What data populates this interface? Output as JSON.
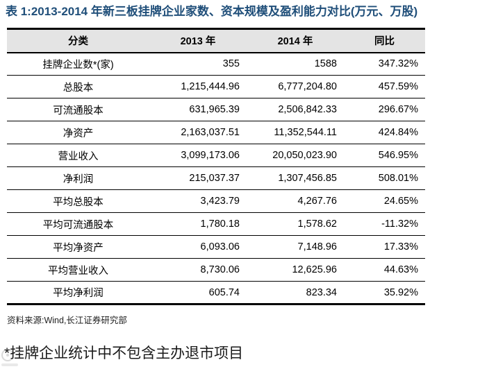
{
  "page": {
    "title": "表 1:2013-2014 年新三板挂牌企业家数、资本规模及盈利能力对比(万元、万股)",
    "source": "资料来源:Wind,长江证券研究部",
    "footnote": "*挂牌企业统计中不包含主办退市项目"
  },
  "table": {
    "headers": {
      "category": "分类",
      "y2013": "2013 年",
      "y2014": "2014 年",
      "yoy": "同比"
    },
    "rows": [
      {
        "label": "挂牌企业数*(家)",
        "y2013": "355",
        "y2014": "1588",
        "yoy": "347.32%"
      },
      {
        "label": "总股本",
        "y2013": "1,215,444.96",
        "y2014": "6,777,204.80",
        "yoy": "457.59%"
      },
      {
        "label": "可流通股本",
        "y2013": "631,965.39",
        "y2014": "2,506,842.33",
        "yoy": "296.67%"
      },
      {
        "label": "净资产",
        "y2013": "2,163,037.51",
        "y2014": "11,352,544.11",
        "yoy": "424.84%"
      },
      {
        "label": "营业收入",
        "y2013": "3,099,173.06",
        "y2014": "20,050,023.90",
        "yoy": "546.95%"
      },
      {
        "label": "净利润",
        "y2013": "215,037.37",
        "y2014": "1,307,456.85",
        "yoy": "508.01%"
      },
      {
        "label": "平均总股本",
        "y2013": "3,423.79",
        "y2014": "4,267.76",
        "yoy": "24.65%"
      },
      {
        "label": "平均可流通股本",
        "y2013": "1,780.18",
        "y2014": "1,578.62",
        "yoy": "-11.32%"
      },
      {
        "label": "平均净资产",
        "y2013": "6,093.06",
        "y2014": "7,148.96",
        "yoy": "17.33%"
      },
      {
        "label": "平均营业收入",
        "y2013": "8,730.06",
        "y2014": "12,625.96",
        "yoy": "44.63%"
      },
      {
        "label": "平均净利润",
        "y2013": "605.74",
        "y2014": "823.34",
        "yoy": "35.92%"
      }
    ]
  },
  "colors": {
    "title_text": "#1F4E79",
    "header_bg": "#E4E4E4",
    "border": "#000000",
    "body_text": "#000000"
  },
  "icons": {
    "watermark": "faint-circle-logo"
  }
}
